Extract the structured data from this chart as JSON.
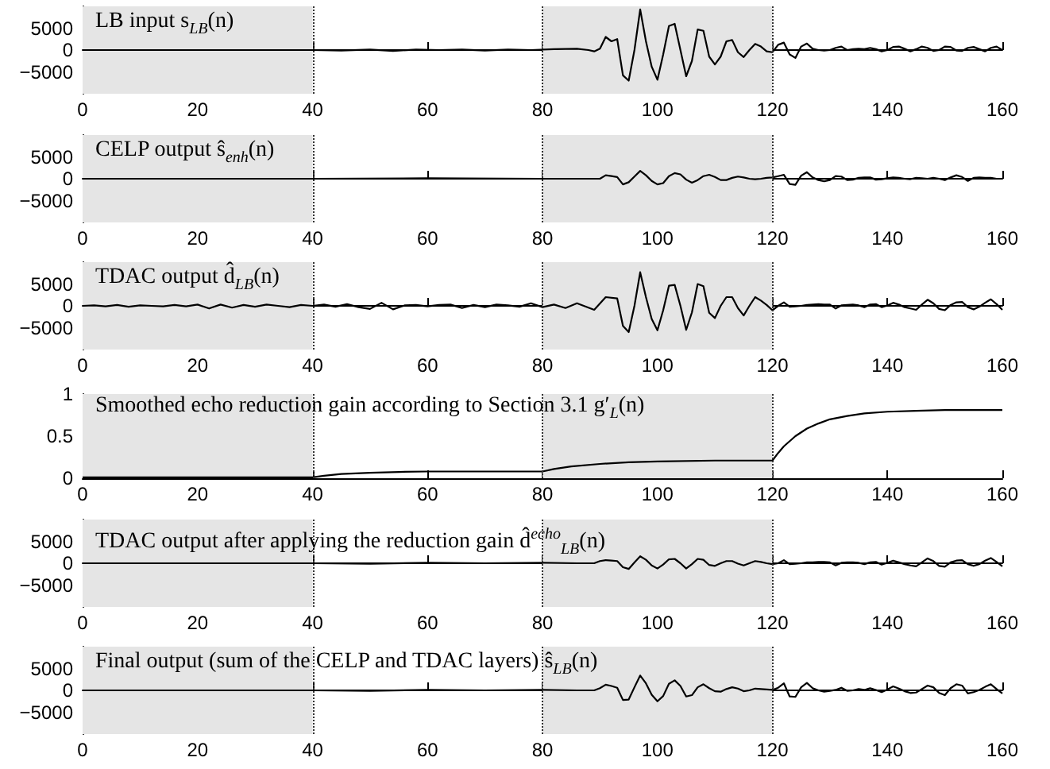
{
  "chart_data": [
    {
      "type": "line",
      "title": "LB input s$_{LB}$(n)",
      "xlim": [
        0,
        160
      ],
      "xticks": [
        0,
        20,
        40,
        60,
        80,
        100,
        120,
        140,
        160
      ],
      "ylim": [
        -10000,
        10000
      ],
      "yticks": [
        -5000,
        0,
        5000
      ],
      "bands": [
        {
          "axis": "x",
          "from": 0,
          "to": 40,
          "color": "#e5e5e5"
        },
        {
          "axis": "x",
          "from": 80,
          "to": 120,
          "color": "#e5e5e5"
        }
      ],
      "ref_lines": [
        {
          "axis": "x",
          "value": 40,
          "line_style": "dotted",
          "color": "#333333"
        },
        {
          "axis": "x",
          "value": 80,
          "line_style": "dotted",
          "color": "#333333"
        },
        {
          "axis": "x",
          "value": 120,
          "line_style": "dotted",
          "color": "#333333"
        }
      ],
      "series": [
        {
          "color": "#000000",
          "x": [
            0,
            40,
            45,
            50,
            54,
            58,
            62,
            66,
            70,
            74,
            78,
            82,
            86,
            88,
            89,
            90,
            91,
            92,
            93,
            94,
            95,
            96,
            97,
            98,
            99,
            100,
            101,
            102,
            103,
            104,
            105,
            106,
            107,
            108,
            109,
            110,
            111,
            112,
            113,
            114,
            115,
            116,
            117,
            118,
            119,
            120,
            121,
            122,
            123,
            124,
            125,
            126,
            127,
            128,
            129,
            130,
            131,
            132,
            133,
            134,
            135,
            136,
            137,
            138,
            139,
            140,
            141,
            142,
            143,
            144,
            145,
            146,
            147,
            148,
            149,
            150,
            151,
            152,
            153,
            154,
            155,
            156,
            157,
            158,
            159,
            160
          ],
          "values": [
            0,
            0,
            -100,
            100,
            -200,
            100,
            0,
            100,
            -100,
            100,
            0,
            200,
            300,
            0,
            -300,
            300,
            3000,
            2000,
            2500,
            -5800,
            -7000,
            0,
            9300,
            2000,
            -3800,
            -6800,
            -1000,
            5500,
            6000,
            0,
            -6000,
            -2500,
            4700,
            4400,
            -1500,
            -3300,
            -1500,
            2000,
            2300,
            -500,
            -1600,
            0,
            1400,
            800,
            -300,
            -500,
            1200,
            1700,
            -1000,
            -1800,
            800,
            1500,
            300,
            0,
            -100,
            0,
            500,
            800,
            0,
            200,
            300,
            200,
            500,
            200,
            -300,
            0,
            700,
            800,
            300,
            -300,
            200,
            800,
            500,
            -200,
            0,
            800,
            700,
            -100,
            -200,
            500,
            700,
            200,
            -300,
            500,
            800,
            0
          ]
        }
      ]
    },
    {
      "type": "line",
      "title": "CELP output ŝ$_{enh}$(n)",
      "xlim": [
        0,
        160
      ],
      "xticks": [
        0,
        20,
        40,
        60,
        80,
        100,
        120,
        140,
        160
      ],
      "ylim": [
        -10000,
        10000
      ],
      "yticks": [
        -5000,
        0,
        5000
      ],
      "bands": [
        {
          "axis": "x",
          "from": 0,
          "to": 40,
          "color": "#e5e5e5"
        },
        {
          "axis": "x",
          "from": 80,
          "to": 120,
          "color": "#e5e5e5"
        }
      ],
      "ref_lines": [
        {
          "axis": "x",
          "value": 40,
          "line_style": "dotted",
          "color": "#333333"
        },
        {
          "axis": "x",
          "value": 80,
          "line_style": "dotted",
          "color": "#333333"
        },
        {
          "axis": "x",
          "value": 120,
          "line_style": "dotted",
          "color": "#333333"
        }
      ],
      "series": [
        {
          "color": "#000000",
          "x": [
            0,
            40,
            60,
            80,
            90,
            91,
            92,
            93,
            94,
            95,
            96,
            97,
            98,
            99,
            100,
            101,
            102,
            103,
            104,
            105,
            106,
            107,
            108,
            109,
            110,
            111,
            112,
            113,
            114,
            115,
            116,
            117,
            118,
            119,
            120,
            121,
            122,
            123,
            124,
            125,
            126,
            127,
            128,
            129,
            130,
            131,
            132,
            133,
            134,
            135,
            136,
            137,
            138,
            139,
            140,
            141,
            142,
            143,
            144,
            145,
            146,
            147,
            148,
            149,
            150,
            151,
            152,
            153,
            154,
            155,
            156,
            157,
            158,
            159,
            160
          ],
          "values": [
            0,
            0,
            100,
            0,
            0,
            800,
            600,
            400,
            -1300,
            -800,
            500,
            1800,
            800,
            -500,
            -1300,
            -1000,
            600,
            1300,
            1000,
            -200,
            -900,
            -300,
            600,
            900,
            400,
            -300,
            -300,
            200,
            500,
            300,
            0,
            -100,
            0,
            200,
            300,
            600,
            900,
            -1200,
            -1400,
            700,
            1500,
            300,
            -300,
            -600,
            -300,
            600,
            500,
            -300,
            -200,
            200,
            300,
            300,
            -200,
            -100,
            100,
            300,
            200,
            0,
            -100,
            200,
            100,
            0,
            200,
            0,
            -300,
            300,
            800,
            400,
            -500,
            200,
            300,
            200,
            200,
            0,
            0
          ]
        }
      ]
    },
    {
      "type": "line",
      "title": "TDAC output d̂$_{LB}$(n)",
      "xlim": [
        0,
        160
      ],
      "xticks": [
        0,
        20,
        40,
        60,
        80,
        100,
        120,
        140,
        160
      ],
      "ylim": [
        -10000,
        10000
      ],
      "yticks": [
        -5000,
        0,
        5000
      ],
      "bands": [
        {
          "axis": "x",
          "from": 0,
          "to": 40,
          "color": "#e5e5e5"
        },
        {
          "axis": "x",
          "from": 80,
          "to": 120,
          "color": "#e5e5e5"
        }
      ],
      "ref_lines": [
        {
          "axis": "x",
          "value": 40,
          "line_style": "dotted",
          "color": "#333333"
        },
        {
          "axis": "x",
          "value": 80,
          "line_style": "dotted",
          "color": "#333333"
        },
        {
          "axis": "x",
          "value": 120,
          "line_style": "dotted",
          "color": "#333333"
        }
      ],
      "series": [
        {
          "color": "#000000",
          "x": [
            0,
            2,
            4,
            6,
            8,
            10,
            12,
            14,
            16,
            18,
            20,
            22,
            24,
            26,
            28,
            30,
            32,
            34,
            36,
            38,
            40,
            42,
            44,
            46,
            48,
            50,
            52,
            54,
            56,
            58,
            60,
            62,
            64,
            66,
            68,
            70,
            72,
            74,
            76,
            78,
            80,
            82,
            84,
            86,
            89,
            91,
            93,
            94,
            95,
            96,
            97,
            98,
            99,
            100,
            101,
            102,
            103,
            104,
            105,
            106,
            107,
            108,
            109,
            110,
            111,
            112,
            113,
            114,
            115,
            116,
            117,
            118,
            119,
            120,
            121,
            122,
            123,
            124,
            125,
            126,
            127,
            128,
            129,
            130,
            131,
            132,
            133,
            134,
            135,
            136,
            137,
            138,
            139,
            140,
            141,
            142,
            143,
            144,
            145,
            146,
            147,
            148,
            149,
            150,
            151,
            152,
            153,
            154,
            155,
            156,
            157,
            158,
            159,
            160
          ],
          "values": [
            0,
            100,
            -100,
            200,
            -200,
            100,
            0,
            -100,
            200,
            -100,
            300,
            -600,
            300,
            -400,
            200,
            -200,
            300,
            0,
            -300,
            200,
            0,
            300,
            -200,
            400,
            -300,
            -700,
            700,
            -800,
            100,
            200,
            -100,
            200,
            300,
            -500,
            200,
            -300,
            300,
            100,
            -200,
            600,
            -300,
            300,
            -500,
            600,
            -900,
            2000,
            1700,
            -4600,
            -6000,
            0,
            7700,
            2000,
            -3000,
            -5600,
            -1000,
            4600,
            4800,
            0,
            -5500,
            -1500,
            5000,
            4500,
            -1600,
            -2800,
            0,
            2000,
            2000,
            -500,
            -2200,
            0,
            2000,
            1200,
            200,
            -1000,
            0,
            800,
            -200,
            -100,
            0,
            200,
            300,
            400,
            300,
            300,
            -600,
            100,
            200,
            300,
            100,
            -300,
            300,
            400,
            -300,
            100,
            700,
            300,
            -300,
            -600,
            -900,
            300,
            1400,
            600,
            -700,
            -1000,
            200,
            800,
            900,
            -300,
            -800,
            -200,
            700,
            1500,
            400,
            -900
          ]
        }
      ]
    },
    {
      "type": "line",
      "title": "Smoothed echo reduction gain according to Section 3.1 g′$_{L}$(n)",
      "xlim": [
        0,
        160
      ],
      "xticks": [
        0,
        20,
        40,
        60,
        80,
        100,
        120,
        140,
        160
      ],
      "ylim": [
        0,
        1
      ],
      "yticks": [
        0,
        0.5,
        1
      ],
      "bands": [
        {
          "axis": "x",
          "from": 0,
          "to": 40,
          "color": "#e5e5e5"
        },
        {
          "axis": "x",
          "from": 80,
          "to": 120,
          "color": "#e5e5e5"
        }
      ],
      "ref_lines": [
        {
          "axis": "x",
          "value": 40,
          "line_style": "dotted",
          "color": "#333333"
        },
        {
          "axis": "x",
          "value": 80,
          "line_style": "dotted",
          "color": "#333333"
        },
        {
          "axis": "x",
          "value": 120,
          "line_style": "dotted",
          "color": "#333333"
        }
      ],
      "series": [
        {
          "color": "#000000",
          "x": [
            0,
            40,
            42,
            45,
            50,
            55,
            60,
            80,
            82,
            85,
            90,
            95,
            100,
            110,
            120,
            121,
            122,
            124,
            126,
            128,
            130,
            133,
            136,
            140,
            145,
            150,
            160
          ],
          "values": [
            0.01,
            0.01,
            0.03,
            0.05,
            0.065,
            0.075,
            0.08,
            0.08,
            0.11,
            0.14,
            0.17,
            0.19,
            0.2,
            0.21,
            0.21,
            0.3,
            0.38,
            0.5,
            0.59,
            0.65,
            0.7,
            0.74,
            0.77,
            0.79,
            0.8,
            0.81,
            0.81
          ]
        }
      ]
    },
    {
      "type": "line",
      "title": "TDAC output after applying the reduction gain d̂$^{echo}$$_{LB}$(n)",
      "xlim": [
        0,
        160
      ],
      "xticks": [
        0,
        20,
        40,
        60,
        80,
        100,
        120,
        140,
        160
      ],
      "ylim": [
        -10000,
        10000
      ],
      "yticks": [
        -5000,
        0,
        5000
      ],
      "bands": [
        {
          "axis": "x",
          "from": 0,
          "to": 40,
          "color": "#e5e5e5"
        },
        {
          "axis": "x",
          "from": 80,
          "to": 120,
          "color": "#e5e5e5"
        }
      ],
      "ref_lines": [
        {
          "axis": "x",
          "value": 40,
          "line_style": "dotted",
          "color": "#333333"
        },
        {
          "axis": "x",
          "value": 80,
          "line_style": "dotted",
          "color": "#333333"
        },
        {
          "axis": "x",
          "value": 120,
          "line_style": "dotted",
          "color": "#333333"
        }
      ],
      "series": [
        {
          "color": "#000000",
          "x": [
            0,
            40,
            50,
            60,
            70,
            80,
            86,
            89,
            90,
            91,
            92,
            93,
            94,
            95,
            96,
            97,
            98,
            99,
            100,
            101,
            102,
            103,
            104,
            105,
            106,
            107,
            108,
            109,
            110,
            111,
            112,
            113,
            114,
            115,
            116,
            117,
            118,
            119,
            120,
            121,
            122,
            123,
            124,
            125,
            126,
            127,
            128,
            129,
            130,
            131,
            132,
            133,
            134,
            135,
            136,
            137,
            138,
            139,
            140,
            141,
            142,
            143,
            144,
            145,
            146,
            147,
            148,
            149,
            150,
            151,
            152,
            153,
            154,
            155,
            156,
            157,
            158,
            159,
            160
          ],
          "values": [
            0,
            0,
            -100,
            100,
            0,
            100,
            0,
            0,
            500,
            700,
            600,
            500,
            -900,
            -1300,
            200,
            1600,
            800,
            -500,
            -1200,
            -300,
            900,
            1000,
            0,
            -1200,
            -200,
            1000,
            800,
            -400,
            -600,
            0,
            500,
            500,
            -100,
            -500,
            0,
            500,
            300,
            0,
            -200,
            0,
            700,
            -200,
            -100,
            0,
            200,
            200,
            300,
            300,
            200,
            -500,
            100,
            200,
            200,
            100,
            -200,
            200,
            300,
            -300,
            100,
            600,
            200,
            -200,
            -500,
            -700,
            200,
            1100,
            500,
            -600,
            -800,
            200,
            600,
            700,
            -200,
            -600,
            -200,
            600,
            1200,
            300,
            -700
          ]
        }
      ]
    },
    {
      "type": "line",
      "title": "Final output (sum of the CELP and TDAC layers) ŝ$_{LB}$(n)",
      "xlim": [
        0,
        160
      ],
      "xticks": [
        0,
        20,
        40,
        60,
        80,
        100,
        120,
        140,
        160
      ],
      "ylim": [
        -10000,
        10000
      ],
      "yticks": [
        -5000,
        0,
        5000
      ],
      "bands": [
        {
          "axis": "x",
          "from": 0,
          "to": 40,
          "color": "#e5e5e5"
        },
        {
          "axis": "x",
          "from": 80,
          "to": 120,
          "color": "#e5e5e5"
        }
      ],
      "ref_lines": [
        {
          "axis": "x",
          "value": 40,
          "line_style": "dotted",
          "color": "#333333"
        },
        {
          "axis": "x",
          "value": 80,
          "line_style": "dotted",
          "color": "#333333"
        },
        {
          "axis": "x",
          "value": 120,
          "line_style": "dotted",
          "color": "#333333"
        }
      ],
      "series": [
        {
          "color": "#000000",
          "x": [
            0,
            40,
            50,
            60,
            70,
            80,
            86,
            89,
            90,
            91,
            92,
            93,
            94,
            95,
            96,
            97,
            98,
            99,
            100,
            101,
            102,
            103,
            104,
            105,
            106,
            107,
            108,
            109,
            110,
            111,
            112,
            113,
            114,
            115,
            116,
            117,
            118,
            119,
            120,
            121,
            122,
            123,
            124,
            125,
            126,
            127,
            128,
            129,
            130,
            131,
            132,
            133,
            134,
            135,
            136,
            137,
            138,
            139,
            140,
            141,
            142,
            143,
            144,
            145,
            146,
            147,
            148,
            149,
            150,
            151,
            152,
            153,
            154,
            155,
            156,
            157,
            158,
            159,
            160
          ],
          "values": [
            0,
            0,
            -100,
            100,
            0,
            100,
            0,
            0,
            500,
            1300,
            1000,
            600,
            -2200,
            -2100,
            700,
            3400,
            1600,
            -1000,
            -2500,
            -1300,
            1500,
            2300,
            1000,
            -1400,
            -1100,
            700,
            1400,
            500,
            -200,
            -300,
            300,
            700,
            400,
            -200,
            0,
            400,
            300,
            200,
            100,
            600,
            1600,
            -1400,
            -1500,
            700,
            1700,
            500,
            0,
            -300,
            -100,
            100,
            600,
            -100,
            0,
            300,
            100,
            500,
            100,
            -400,
            200,
            900,
            400,
            -200,
            -600,
            -500,
            300,
            1100,
            700,
            -600,
            -1100,
            500,
            1400,
            1100,
            -700,
            -400,
            100,
            800,
            1400,
            300,
            -700
          ]
        }
      ]
    }
  ]
}
